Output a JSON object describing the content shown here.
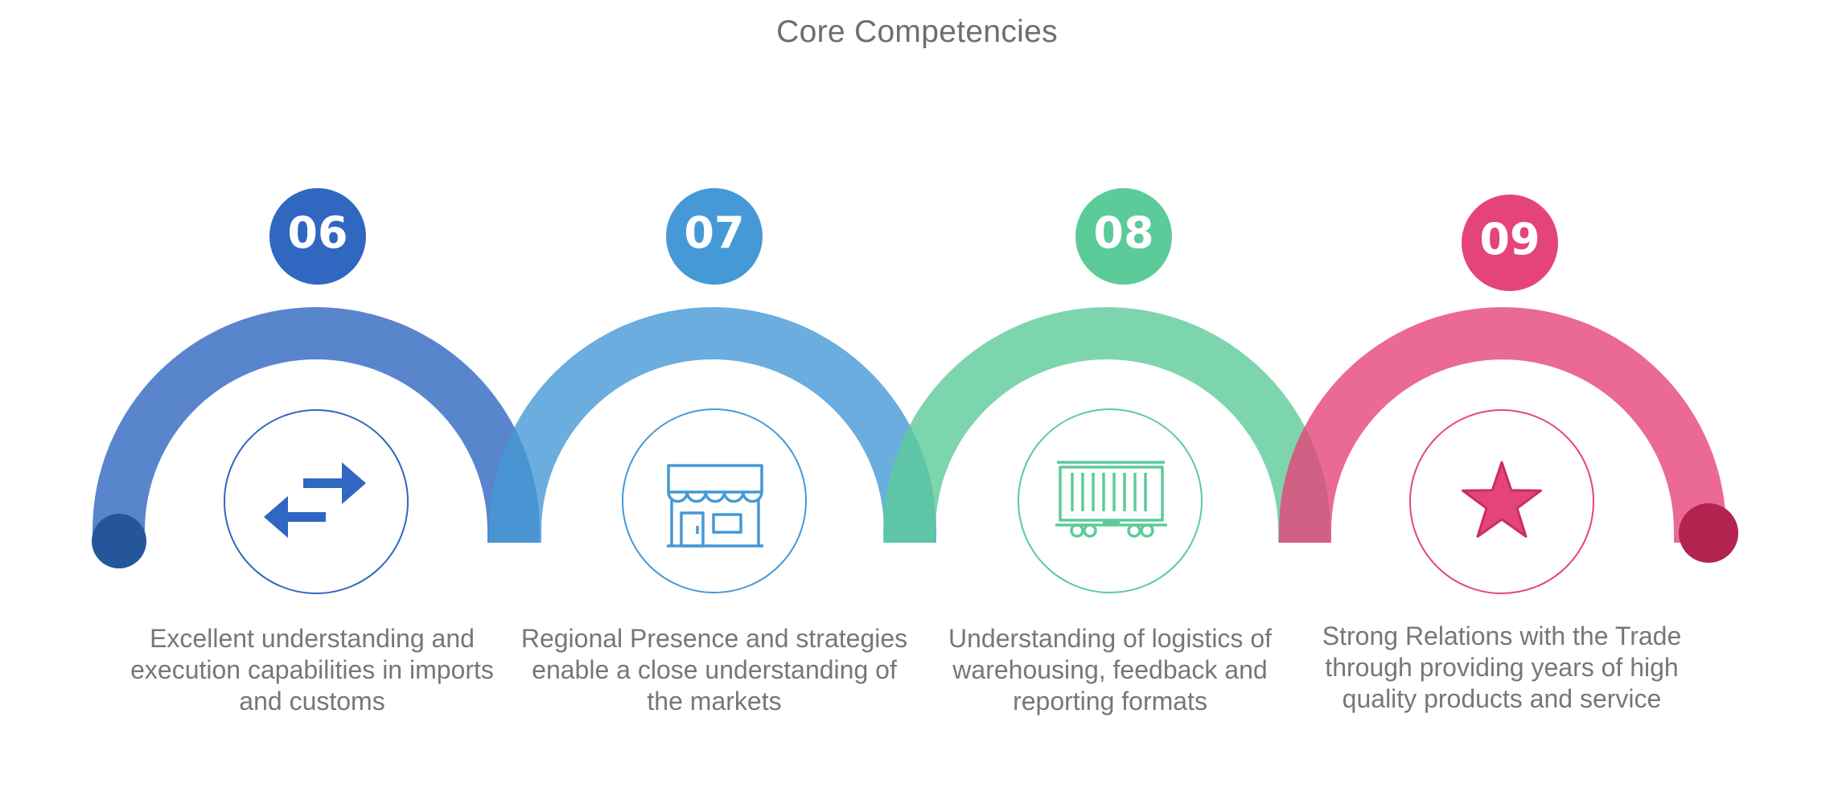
{
  "title": "Core Competencies",
  "colors": {
    "blue_dark": "#3067c0",
    "blue_light": "#4599d6",
    "green": "#5ccb9a",
    "pink": "#e5447a",
    "text": "#777777"
  },
  "items": [
    {
      "number": "06",
      "icon": "exchange-arrows-icon",
      "description": "Excellent understanding and execution capabilities in imports and customs"
    },
    {
      "number": "07",
      "icon": "storefront-icon",
      "description": "Regional Presence and strategies enable a close understanding of the markets"
    },
    {
      "number": "08",
      "icon": "freight-container-wagon-icon",
      "description": "Understanding of logistics of warehousing, feedback and reporting formats"
    },
    {
      "number": "09",
      "icon": "star-icon",
      "description": "Strong Relations with the Trade through providing years of high quality products and service"
    }
  ]
}
